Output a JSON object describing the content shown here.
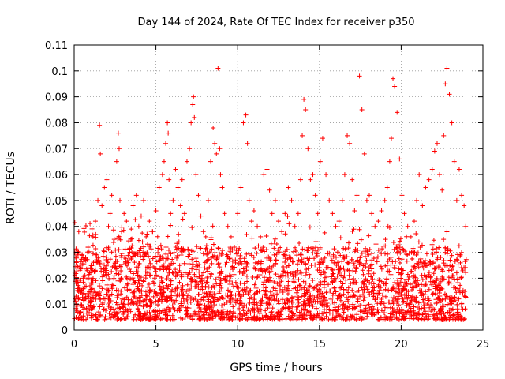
{
  "chart_data": {
    "type": "scatter",
    "title": "Day 144 of 2024, Rate Of TEC Index for receiver p350",
    "xlabel": "GPS time / hours",
    "ylabel": "ROTI / TECUs",
    "xlim": [
      0,
      25
    ],
    "ylim": [
      0,
      0.11
    ],
    "xticks": [
      "0",
      "5",
      "10",
      "15",
      "20",
      "25"
    ],
    "yticks": [
      "0",
      "0.01",
      "0.02",
      "0.03",
      "0.04",
      "0.05",
      "0.06",
      "0.07",
      "0.08",
      "0.09",
      "0.1",
      "0.11"
    ],
    "grid": true,
    "marker": "+",
    "series": [
      {
        "color": "#ff0000",
        "x": [
          0.05,
          0.12,
          0.2,
          0.28,
          0.35,
          0.45,
          0.55,
          0.7,
          0.85,
          1.0,
          1.15,
          1.3,
          1.45,
          1.55,
          1.6,
          1.7,
          1.85,
          2.0,
          2.1,
          2.2,
          2.3,
          2.45,
          2.6,
          2.7,
          2.75,
          2.8,
          2.9,
          3.05,
          3.2,
          3.4,
          3.6,
          3.8,
          3.95,
          4.1,
          4.25,
          4.4,
          4.6,
          4.8,
          5.0,
          5.2,
          5.4,
          5.5,
          5.6,
          5.7,
          5.75,
          5.8,
          5.9,
          6.05,
          6.2,
          6.35,
          6.5,
          6.6,
          6.75,
          6.9,
          7.05,
          7.15,
          7.25,
          7.3,
          7.35,
          7.45,
          7.6,
          7.75,
          7.9,
          8.05,
          8.2,
          8.35,
          8.5,
          8.6,
          8.7,
          8.8,
          8.9,
          8.95,
          9.05,
          9.2,
          9.4,
          9.6,
          9.8,
          10.0,
          10.2,
          10.35,
          10.5,
          10.6,
          10.7,
          10.85,
          11.0,
          11.2,
          11.4,
          11.6,
          11.8,
          11.95,
          12.1,
          12.3,
          12.5,
          12.7,
          12.9,
          13.1,
          13.3,
          13.5,
          13.7,
          13.85,
          13.95,
          14.05,
          14.15,
          14.3,
          14.45,
          14.6,
          14.75,
          14.9,
          15.05,
          15.2,
          15.4,
          15.6,
          15.8,
          16.0,
          16.2,
          16.4,
          16.55,
          16.7,
          16.85,
          17.0,
          17.15,
          17.3,
          17.45,
          17.6,
          17.75,
          17.9,
          18.05,
          18.2,
          18.4,
          18.6,
          18.8,
          19.0,
          19.15,
          19.3,
          19.4,
          19.5,
          19.6,
          19.75,
          19.9,
          20.05,
          20.2,
          20.4,
          20.6,
          20.8,
          20.95,
          21.1,
          21.3,
          21.5,
          21.7,
          21.9,
          22.05,
          22.2,
          22.35,
          22.5,
          22.6,
          22.7,
          22.8,
          22.95,
          23.1,
          23.25,
          23.4,
          23.55,
          23.7,
          23.85,
          23.95
        ],
        "y": [
          0.012,
          0.018,
          0.03,
          0.038,
          0.025,
          0.015,
          0.02,
          0.028,
          0.032,
          0.024,
          0.036,
          0.042,
          0.05,
          0.079,
          0.068,
          0.048,
          0.055,
          0.058,
          0.04,
          0.045,
          0.052,
          0.035,
          0.065,
          0.076,
          0.07,
          0.05,
          0.038,
          0.045,
          0.042,
          0.03,
          0.048,
          0.052,
          0.04,
          0.044,
          0.05,
          0.036,
          0.042,
          0.038,
          0.046,
          0.055,
          0.06,
          0.065,
          0.072,
          0.08,
          0.076,
          0.058,
          0.045,
          0.05,
          0.062,
          0.055,
          0.048,
          0.058,
          0.045,
          0.065,
          0.07,
          0.08,
          0.087,
          0.09,
          0.082,
          0.06,
          0.052,
          0.044,
          0.038,
          0.036,
          0.05,
          0.065,
          0.078,
          0.072,
          0.068,
          0.101,
          0.07,
          0.06,
          0.055,
          0.045,
          0.04,
          0.036,
          0.032,
          0.045,
          0.055,
          0.08,
          0.083,
          0.072,
          0.05,
          0.042,
          0.046,
          0.04,
          0.036,
          0.06,
          0.062,
          0.054,
          0.045,
          0.05,
          0.042,
          0.038,
          0.045,
          0.055,
          0.05,
          0.04,
          0.045,
          0.058,
          0.075,
          0.089,
          0.085,
          0.07,
          0.058,
          0.06,
          0.052,
          0.045,
          0.065,
          0.074,
          0.06,
          0.05,
          0.045,
          0.04,
          0.042,
          0.05,
          0.06,
          0.075,
          0.072,
          0.058,
          0.046,
          0.052,
          0.098,
          0.085,
          0.068,
          0.05,
          0.052,
          0.045,
          0.04,
          0.042,
          0.046,
          0.05,
          0.055,
          0.065,
          0.074,
          0.097,
          0.094,
          0.084,
          0.066,
          0.052,
          0.045,
          0.04,
          0.036,
          0.042,
          0.05,
          0.06,
          0.048,
          0.055,
          0.058,
          0.062,
          0.069,
          0.072,
          0.06,
          0.054,
          0.075,
          0.095,
          0.101,
          0.091,
          0.08,
          0.065,
          0.05,
          0.062,
          0.052,
          0.048,
          0.04
        ]
      }
    ]
  }
}
